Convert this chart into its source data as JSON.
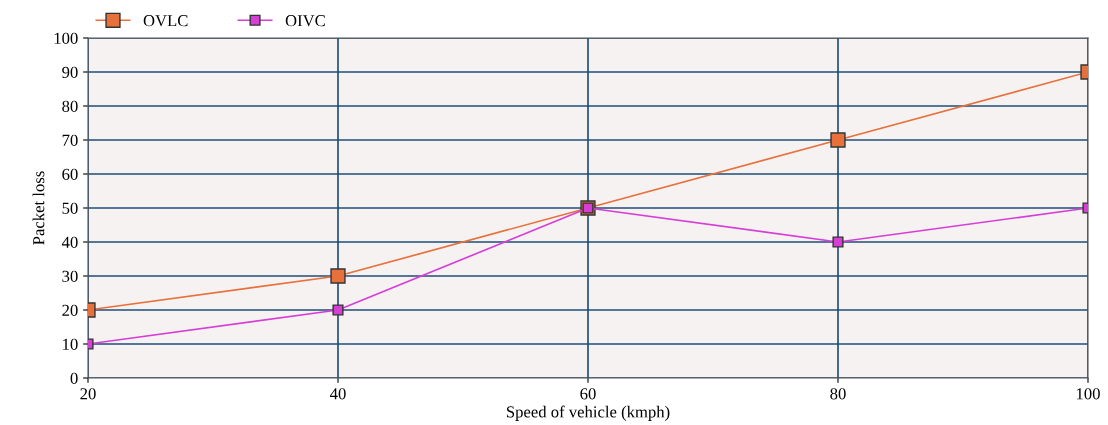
{
  "chart_data": {
    "type": "line",
    "xlabel": "Speed of vehicle (kmph)",
    "ylabel": "Packet loss",
    "x": [
      20,
      40,
      60,
      80,
      100
    ],
    "series": [
      {
        "name": "OVLC",
        "color": "#e8703a",
        "values": [
          20,
          30,
          50,
          70,
          90
        ]
      },
      {
        "name": "OIVC",
        "color": "#d63fd6",
        "values": [
          10,
          20,
          50,
          40,
          50
        ]
      }
    ],
    "xlim": [
      20,
      100
    ],
    "xticks": [
      20,
      40,
      60,
      80,
      100
    ],
    "ylim": [
      0,
      100
    ],
    "yticks": [
      0,
      10,
      20,
      30,
      40,
      50,
      60,
      70,
      80,
      90,
      100
    ],
    "grid": true,
    "legend": "top left",
    "marker": "square",
    "line_style": "solid"
  }
}
